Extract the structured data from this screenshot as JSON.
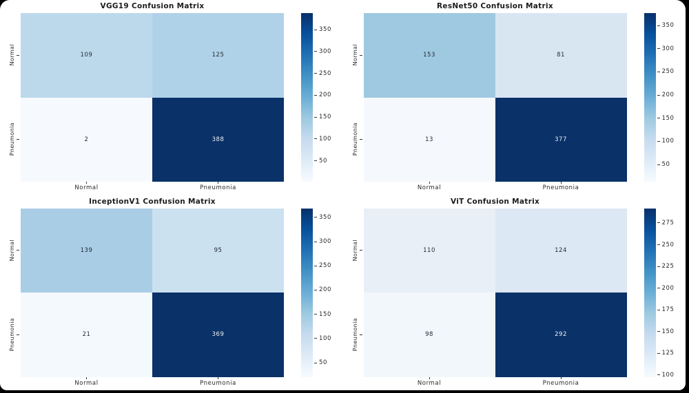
{
  "page": {
    "background_color": "#000000",
    "canvas_color": "#ffffff"
  },
  "style": {
    "blues_gradient": [
      "#f7fbff",
      "#deebf7",
      "#c6dbef",
      "#9ecae1",
      "#6baed6",
      "#4292c6",
      "#2171b5",
      "#08519c",
      "#08306b"
    ],
    "dark_text": "#1f2430",
    "light_text": "#eef2f6"
  },
  "chart_data": [
    {
      "type": "heatmap",
      "title": "VGG19 Confusion Matrix",
      "x_tick_labels": [
        "Normal",
        "Pneumonia"
      ],
      "y_tick_labels": [
        "Normal",
        "Pneumonia"
      ],
      "matrix": [
        [
          109,
          125
        ],
        [
          2,
          388
        ]
      ],
      "cell_colors": [
        [
          "#bcd9ec",
          "#b0d2e9"
        ],
        [
          "#f6f9fe",
          "#0a3168"
        ]
      ],
      "cell_text_colors": [
        [
          "#1f2430",
          "#1f2430"
        ],
        [
          "#1f2430",
          "#eef2f6"
        ]
      ],
      "vmin": 2,
      "vmax": 388,
      "colorbar": {
        "ticks": [
          50,
          100,
          150,
          200,
          250,
          300,
          350
        ]
      },
      "colormap": "Blues",
      "legend_position": "right-colorbar",
      "grid": false
    },
    {
      "type": "heatmap",
      "title": "ResNet50 Confusion Matrix",
      "x_tick_labels": [
        "Normal",
        "Pneumonia"
      ],
      "y_tick_labels": [
        "Normal",
        "Pneumonia"
      ],
      "matrix": [
        [
          153,
          81
        ],
        [
          13,
          377
        ]
      ],
      "cell_colors": [
        [
          "#9fc9e1",
          "#d8e6f2"
        ],
        [
          "#f5f9fd",
          "#0a3168"
        ]
      ],
      "cell_text_colors": [
        [
          "#1f2430",
          "#1f2430"
        ],
        [
          "#1f2430",
          "#eef2f6"
        ]
      ],
      "vmin": 13,
      "vmax": 377,
      "colorbar": {
        "ticks": [
          50,
          100,
          150,
          200,
          250,
          300,
          350
        ]
      },
      "colormap": "Blues",
      "legend_position": "right-colorbar",
      "grid": false
    },
    {
      "type": "heatmap",
      "title": "InceptionV1 Confusion Matrix",
      "x_tick_labels": [
        "Normal",
        "Pneumonia"
      ],
      "y_tick_labels": [
        "Normal",
        "Pneumonia"
      ],
      "matrix": [
        [
          139,
          95
        ],
        [
          21,
          369
        ]
      ],
      "cell_colors": [
        [
          "#aacde6",
          "#cbe1f0"
        ],
        [
          "#f4f9fd",
          "#0a3168"
        ]
      ],
      "cell_text_colors": [
        [
          "#1f2430",
          "#1f2430"
        ],
        [
          "#1f2430",
          "#eef2f6"
        ]
      ],
      "vmin": 21,
      "vmax": 369,
      "colorbar": {
        "ticks": [
          50,
          100,
          150,
          200,
          250,
          300,
          350
        ]
      },
      "colormap": "Blues",
      "legend_position": "right-colorbar",
      "grid": false
    },
    {
      "type": "heatmap",
      "title": "ViT Confusion Matrix",
      "x_tick_labels": [
        "Normal",
        "Pneumonia"
      ],
      "y_tick_labels": [
        "Normal",
        "Pneumonia"
      ],
      "matrix": [
        [
          110,
          124
        ],
        [
          98,
          292
        ]
      ],
      "cell_colors": [
        [
          "#e8eff7",
          "#dce8f3"
        ],
        [
          "#f2f7fc",
          "#0a3168"
        ]
      ],
      "cell_text_colors": [
        [
          "#1f2430",
          "#1f2430"
        ],
        [
          "#1f2430",
          "#eef2f6"
        ]
      ],
      "vmin": 98,
      "vmax": 292,
      "colorbar": {
        "ticks": [
          100,
          125,
          150,
          175,
          200,
          225,
          250,
          275
        ]
      },
      "colormap": "Blues",
      "legend_position": "right-colorbar",
      "grid": false
    }
  ]
}
